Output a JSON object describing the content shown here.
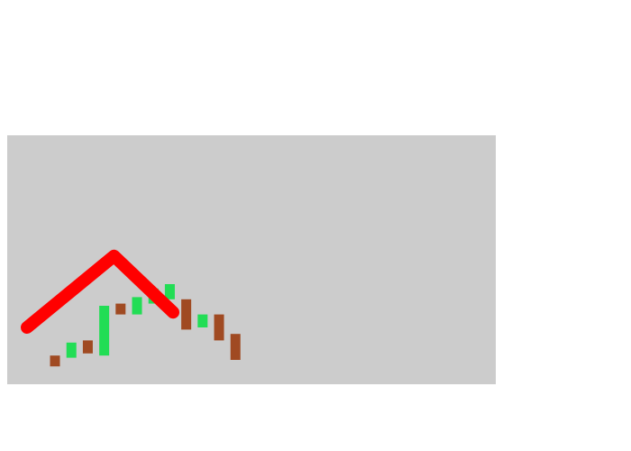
{
  "chart_data": {
    "type": "candlestick",
    "title": "",
    "xlabel": "",
    "ylabel": "",
    "grid": false,
    "legend": "none",
    "ylim": [
      0,
      100
    ],
    "colors": {
      "plot_background": "#cccccc",
      "page_background": "#ffffff",
      "up": "#22dd55",
      "down": "#a04a22",
      "overlay_line": "#ff0000"
    },
    "candles": [
      {
        "open": 7,
        "close": 2,
        "direction": "down"
      },
      {
        "open": 6,
        "close": 13,
        "direction": "up"
      },
      {
        "open": 14,
        "close": 8,
        "direction": "down"
      },
      {
        "open": 7,
        "close": 30,
        "direction": "up"
      },
      {
        "open": 31,
        "close": 26,
        "direction": "down"
      },
      {
        "open": 26,
        "close": 34,
        "direction": "up"
      },
      {
        "open": 31,
        "close": 38,
        "direction": "up"
      },
      {
        "open": 33,
        "close": 40,
        "direction": "up"
      },
      {
        "open": 33,
        "close": 19,
        "direction": "down"
      },
      {
        "open": 20,
        "close": 26,
        "direction": "up"
      },
      {
        "open": 26,
        "close": 14,
        "direction": "down"
      },
      {
        "open": 17,
        "close": 5,
        "direction": "down"
      }
    ],
    "overlay_line": {
      "points": [
        [
          0,
          20
        ],
        [
          5.3,
          53
        ],
        [
          8.9,
          27
        ]
      ]
    }
  }
}
